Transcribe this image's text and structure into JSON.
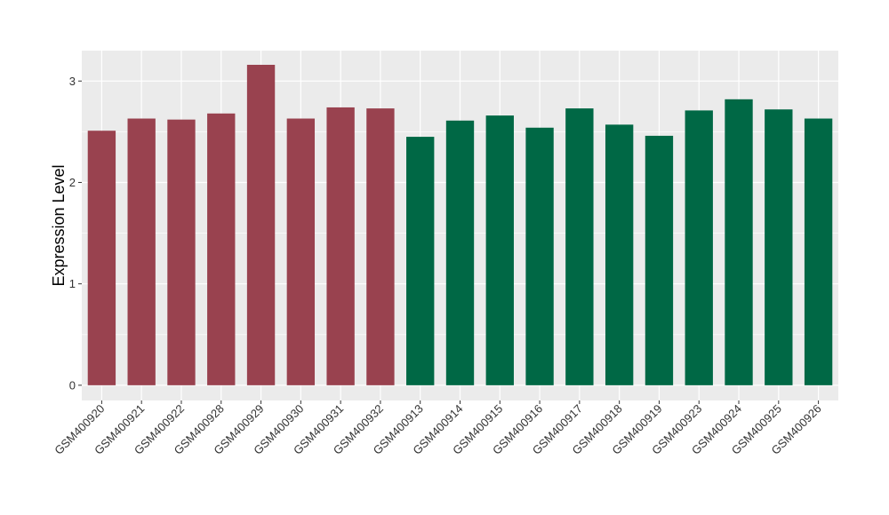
{
  "chart_data": {
    "type": "bar",
    "title": "",
    "xlabel": "",
    "ylabel": "Expression Level",
    "ylim": [
      -0.15,
      3.3
    ],
    "yticks": [
      0,
      1,
      2,
      3
    ],
    "grid": true,
    "legend": "none",
    "panel_background": "#ebebeb",
    "gridline_color": "#ffffff",
    "categories": [
      "GSM400920",
      "GSM400921",
      "GSM400922",
      "GSM400928",
      "GSM400929",
      "GSM400930",
      "GSM400931",
      "GSM400932",
      "GSM400913",
      "GSM400914",
      "GSM400915",
      "GSM400916",
      "GSM400917",
      "GSM400918",
      "GSM400919",
      "GSM400923",
      "GSM400924",
      "GSM400925",
      "GSM400926"
    ],
    "values": [
      2.51,
      2.63,
      2.62,
      2.68,
      3.16,
      2.63,
      2.74,
      2.73,
      2.45,
      2.61,
      2.66,
      2.54,
      2.73,
      2.57,
      2.46,
      2.71,
      2.82,
      2.72,
      2.63
    ],
    "groups": [
      "a",
      "a",
      "a",
      "a",
      "a",
      "a",
      "a",
      "a",
      "b",
      "b",
      "b",
      "b",
      "b",
      "b",
      "b",
      "b",
      "b",
      "b",
      "b"
    ],
    "colors": {
      "a": "#99424f",
      "b": "#006845"
    }
  }
}
